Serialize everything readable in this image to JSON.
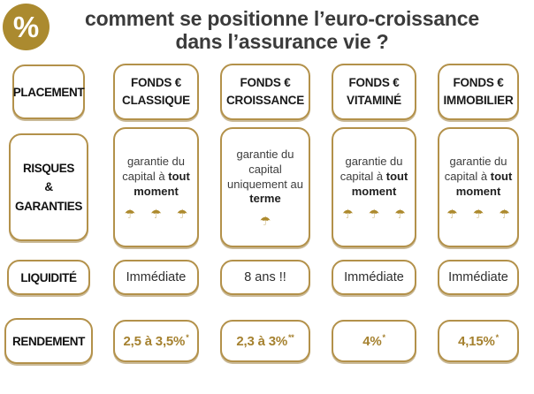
{
  "header": {
    "icon_glyph": "%",
    "title_line1": "comment se positionne l’euro-croissance",
    "title_line2": "dans l’assurance vie ?"
  },
  "icons": {
    "umbrella": "☂",
    "percent": "percent-icon"
  },
  "colors": {
    "gold_circle": "#ab8a2f",
    "box_border": "#b3914a",
    "rendement_text": "#a5812f",
    "umbrella_gold": "#ad8a2e",
    "title_text": "#3b3b3b"
  },
  "table": {
    "row_labels": {
      "placement": "PLACEMENT",
      "risques_line1": "RISQUES",
      "risques_line2": "&",
      "risques_line3": "GARANTIES",
      "liquidite": "LIQUIDITÉ",
      "rendement": "RENDEMENT"
    },
    "columns": [
      {
        "line1": "FONDS €",
        "line2": "CLASSIQUE"
      },
      {
        "line1": "FONDS €",
        "line2": "CROISSANCE"
      },
      {
        "line1": "FONDS €",
        "line2": "VITAMINÉ"
      },
      {
        "line1": "FONDS €",
        "line2": "IMMOBILIER"
      }
    ],
    "risques": {
      "cells": [
        {
          "pre": "garantie du capital à ",
          "bold": "tout moment",
          "umbrellas": 3
        },
        {
          "pre": "garantie du capital uniquement au ",
          "bold": "terme",
          "umbrellas": 1
        },
        {
          "pre": "garantie du capital à ",
          "bold": "tout moment",
          "umbrellas": 3
        },
        {
          "pre": "garantie du capital à ",
          "bold": "tout moment",
          "umbrellas": 3
        }
      ]
    },
    "liquidite": {
      "cells": [
        "Immédiate",
        "8 ans !!",
        "Immédiate",
        "Immédiate"
      ]
    },
    "rendement": {
      "cells": [
        {
          "value": "2,5 à 3,5%",
          "sup": "*"
        },
        {
          "value": "2,3 à 3%",
          "sup": "**"
        },
        {
          "value": "4%",
          "sup": "*"
        },
        {
          "value": "4,15%",
          "sup": "*"
        }
      ]
    }
  }
}
